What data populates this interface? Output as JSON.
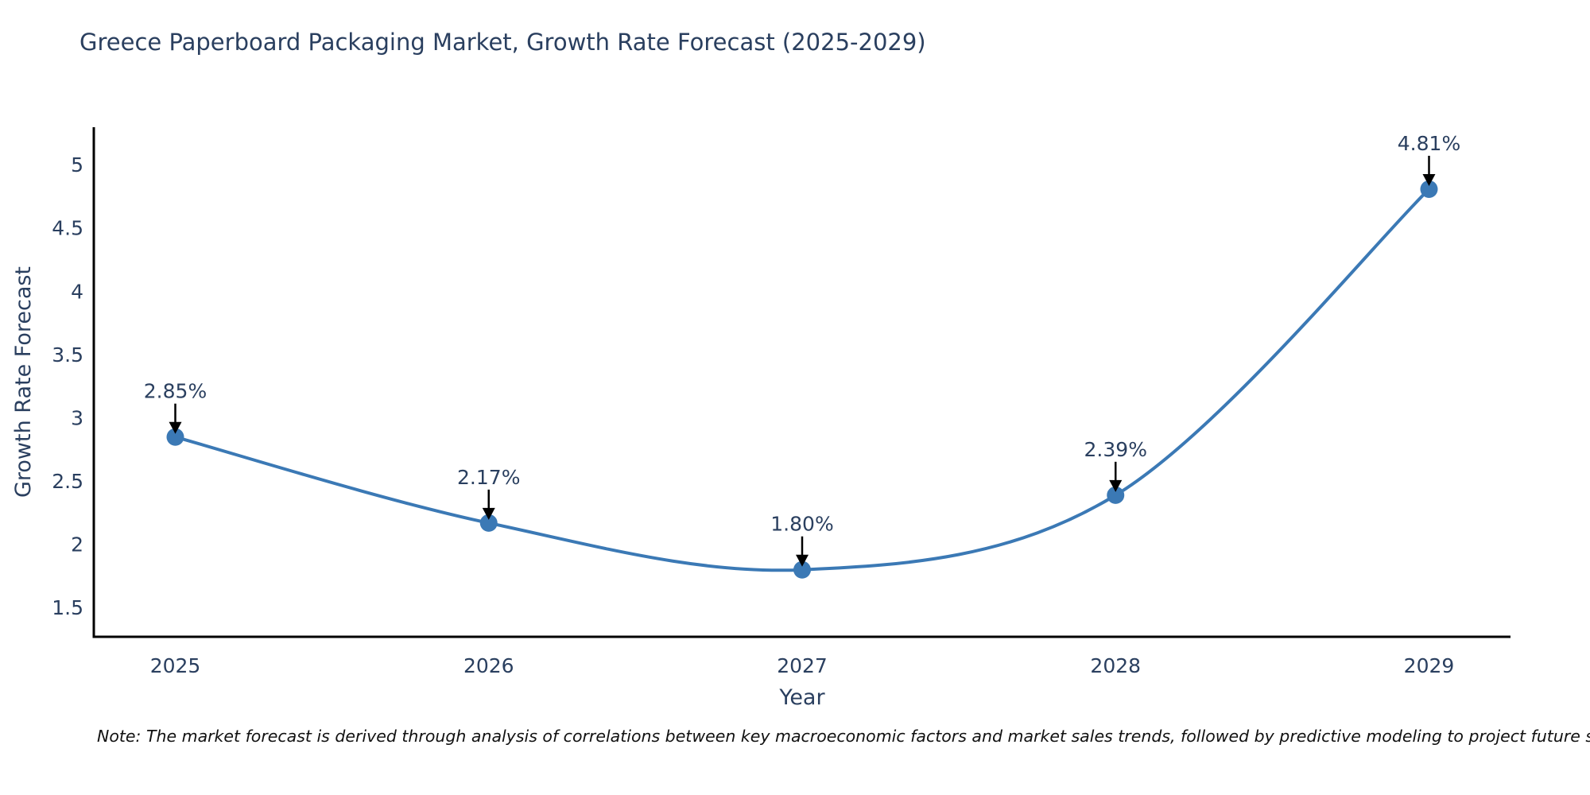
{
  "title": "Greece Paperboard Packaging Market, Growth Rate Forecast (2025-2029)",
  "note": "Note: The market forecast is derived through analysis of correlations between key macroeconomic factors and market sales trends, followed by predictive modeling to project future sales",
  "colors": {
    "line": "#3b79b5",
    "marker": "#3b79b5",
    "axis": "#000000",
    "text": "#2a3f5f",
    "arrow": "#000000",
    "note_text": "#111111",
    "background": "#ffffff"
  },
  "chart_data": {
    "type": "line",
    "line_shape": "spline",
    "title": "Greece Paperboard Packaging Market, Growth Rate Forecast (2025-2029)",
    "xlabel": "Year",
    "ylabel": "Growth Rate Forecast",
    "categories": [
      "2025",
      "2026",
      "2027",
      "2028",
      "2029"
    ],
    "values": [
      2.85,
      2.17,
      1.8,
      2.39,
      4.81
    ],
    "point_labels": [
      "2.85%",
      "2.17%",
      "1.80%",
      "2.39%",
      "4.81%"
    ],
    "yticks": [
      1.5,
      2,
      2.5,
      3,
      3.5,
      4,
      4.5,
      5
    ],
    "ylim": [
      1.27,
      5.3
    ],
    "xlim_index": [
      -0.26,
      4.26
    ],
    "grid": false,
    "legend": "none",
    "annotation_arrows": true
  }
}
